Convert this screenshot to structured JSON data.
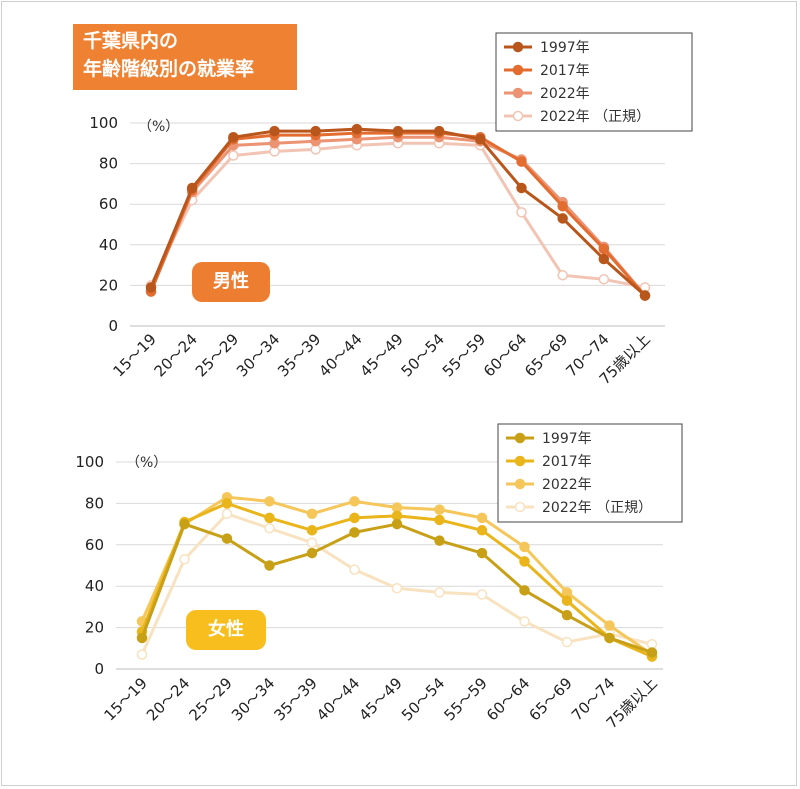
{
  "title": {
    "line1": "千葉県内の",
    "line2": "年齢階級別の就業率"
  },
  "chart_data": [
    {
      "type": "line",
      "tag": "男性",
      "unit": "（%）",
      "ylim": [
        0,
        100
      ],
      "yticks": [
        0,
        20,
        40,
        60,
        80,
        100
      ],
      "grid": true,
      "legend_position": "top-right",
      "categories": [
        "15～19",
        "20～24",
        "25～29",
        "30～34",
        "35～39",
        "40～44",
        "45～49",
        "50～54",
        "55～59",
        "60～64",
        "65～69",
        "70～74",
        "75歳以上"
      ],
      "series": [
        {
          "name": "1997年",
          "color": "#b8561c",
          "marker": "filled",
          "values": [
            19,
            68,
            93,
            96,
            96,
            97,
            96,
            96,
            92,
            68,
            53,
            33,
            15
          ]
        },
        {
          "name": "2017年",
          "color": "#e36c30",
          "marker": "filled",
          "values": [
            17,
            67,
            92,
            94,
            94,
            95,
            95,
            95,
            93,
            81,
            59,
            38,
            15
          ]
        },
        {
          "name": "2022年",
          "color": "#eb9372",
          "marker": "filled",
          "values": [
            17,
            66,
            89,
            90,
            91,
            92,
            93,
            93,
            91,
            82,
            61,
            39,
            15
          ]
        },
        {
          "name": "2022年 （正規）",
          "color": "#f2c4b4",
          "marker": "hollow",
          "values": [
            20,
            62,
            84,
            86,
            87,
            89,
            90,
            90,
            89,
            56,
            25,
            23,
            19
          ]
        }
      ]
    },
    {
      "type": "line",
      "tag": "女性",
      "unit": "（%）",
      "ylim": [
        0,
        100
      ],
      "yticks": [
        0,
        20,
        40,
        60,
        80,
        100
      ],
      "grid": true,
      "legend_position": "top-right",
      "categories": [
        "15～19",
        "20～24",
        "25～29",
        "30～34",
        "35～39",
        "40～44",
        "45～49",
        "50～54",
        "55～59",
        "60～64",
        "65～69",
        "70～74",
        "75歳以上"
      ],
      "series": [
        {
          "name": "1997年",
          "color": "#c8a017",
          "marker": "filled",
          "values": [
            15,
            70,
            63,
            50,
            56,
            66,
            70,
            62,
            56,
            38,
            26,
            15,
            8
          ]
        },
        {
          "name": "2017年",
          "color": "#e9b51a",
          "marker": "filled",
          "values": [
            18,
            71,
            80,
            73,
            67,
            73,
            74,
            72,
            67,
            52,
            33,
            15,
            6
          ]
        },
        {
          "name": "2022年",
          "color": "#f5c659",
          "marker": "filled",
          "values": [
            23,
            70,
            83,
            81,
            75,
            81,
            78,
            77,
            73,
            59,
            37,
            21,
            7
          ]
        },
        {
          "name": "2022年 （正規）",
          "color": "#f8e2c0",
          "marker": "hollow",
          "values": [
            7,
            53,
            75,
            68,
            61,
            48,
            39,
            37,
            36,
            23,
            13,
            17,
            12
          ]
        }
      ]
    }
  ]
}
